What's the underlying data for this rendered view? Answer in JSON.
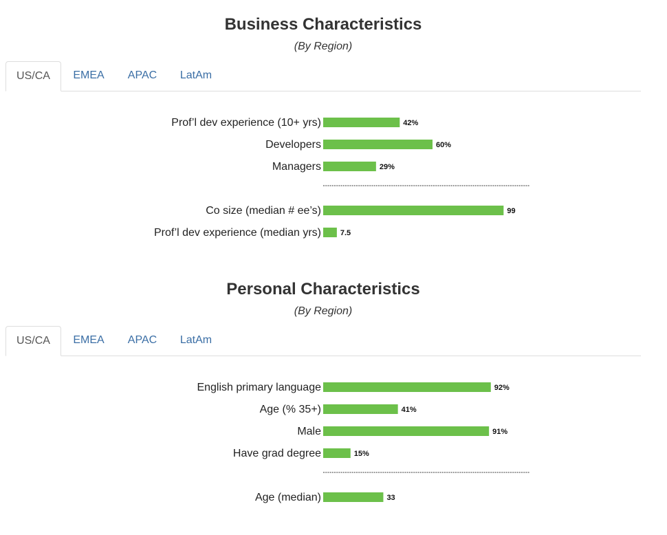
{
  "sections": [
    {
      "title": "Business Characteristics",
      "subtitle": "(By Region)",
      "tabs": [
        "US/CA",
        "EMEA",
        "APAC",
        "LatAm"
      ],
      "active_tab": "US/CA"
    },
    {
      "title": "Personal Characteristics",
      "subtitle": "(By Region)",
      "tabs": [
        "US/CA",
        "EMEA",
        "APAC",
        "LatAm"
      ],
      "active_tab": "US/CA"
    }
  ],
  "colors": {
    "bar": "#6cc04a",
    "tab_link": "#3a6ea5",
    "tab_active": "#555555"
  },
  "chart_data": [
    {
      "type": "bar",
      "orientation": "horizontal",
      "title": "Business Characteristics",
      "subtitle": "(By Region)",
      "region": "US/CA",
      "groups": [
        {
          "categories": [
            "Prof’l dev experience (10+ yrs)",
            "Developers",
            "Managers"
          ],
          "values": [
            42,
            60,
            29
          ],
          "value_labels": [
            "42%",
            "60%",
            "29%"
          ],
          "unit": "%",
          "xlim": [
            0,
            100
          ]
        },
        {
          "categories": [
            "Co size (median # ee’s)",
            "Prof’l dev experience (median yrs)"
          ],
          "values": [
            99,
            7.5
          ],
          "value_labels": [
            "99",
            "7.5"
          ],
          "xlim": [
            0,
            100
          ]
        }
      ],
      "grid": false,
      "legend": "none"
    },
    {
      "type": "bar",
      "orientation": "horizontal",
      "title": "Personal Characteristics",
      "subtitle": "(By Region)",
      "region": "US/CA",
      "groups": [
        {
          "categories": [
            "English primary language",
            "Age (% 35+)",
            "Male",
            "Have grad degree"
          ],
          "values": [
            92,
            41,
            91,
            15
          ],
          "value_labels": [
            "92%",
            "41%",
            "91%",
            "15%"
          ],
          "unit": "%",
          "xlim": [
            0,
            100
          ]
        },
        {
          "categories": [
            "Age (median)"
          ],
          "values": [
            33
          ],
          "value_labels": [
            "33"
          ],
          "xlim": [
            0,
            100
          ]
        }
      ],
      "grid": false,
      "legend": "none"
    }
  ]
}
